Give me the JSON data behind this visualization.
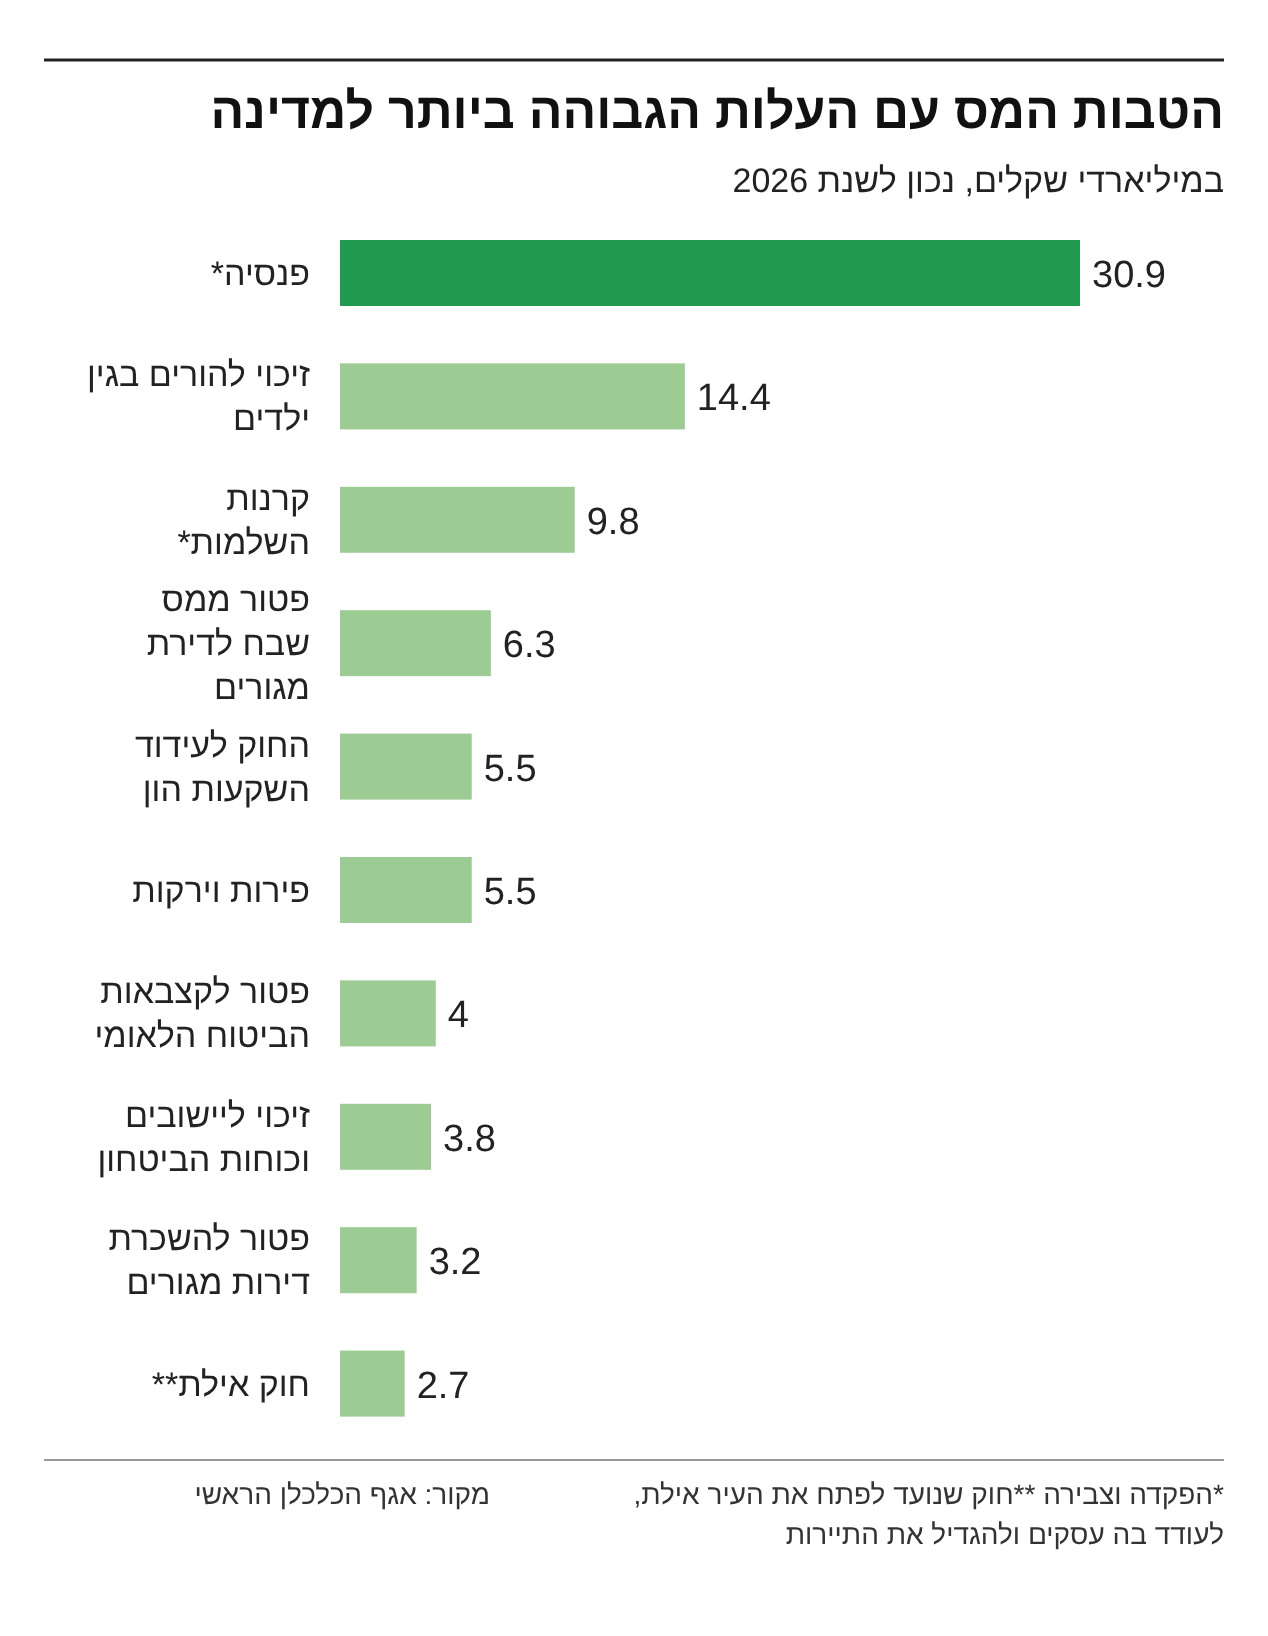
{
  "chart_data": {
    "type": "bar",
    "orientation": "horizontal",
    "title": "הטבות המס עם העלות הגבוהה ביותר למדינה",
    "subtitle": "במיליארדי שקלים, נכון לשנת 2026",
    "categories": [
      "פנסיה*",
      "זיכוי להורים בגין ילדים",
      "קרנות השלמות*",
      "פטור ממס שבח לדירת מגורים",
      "החוק לעידוד השקעות הון",
      "פירות וירקות",
      "פטור לקצבאות הביטוח הלאומי",
      "זיכוי ליישובים וכוחות הביטחון",
      "פטור להשכרת דירות מגורים",
      "חוק אילת**"
    ],
    "values": [
      30.9,
      14.4,
      9.8,
      6.3,
      5.5,
      5.5,
      4,
      3.8,
      3.2,
      2.7
    ],
    "colors": [
      "#1f9a4f",
      "#9ccc93",
      "#9ccc93",
      "#9ccc93",
      "#9ccc93",
      "#9ccc93",
      "#9ccc93",
      "#9ccc93",
      "#9ccc93",
      "#9ccc93"
    ],
    "data_labels": true,
    "annotations": [
      "מקור: אגף הכלכלן הראשי",
      "*הפקדה וצבירה  **חוק שנועד לפתח את העיר אילת, לעודד בה עסקים ולהגדיל את התיירות"
    ]
  }
}
